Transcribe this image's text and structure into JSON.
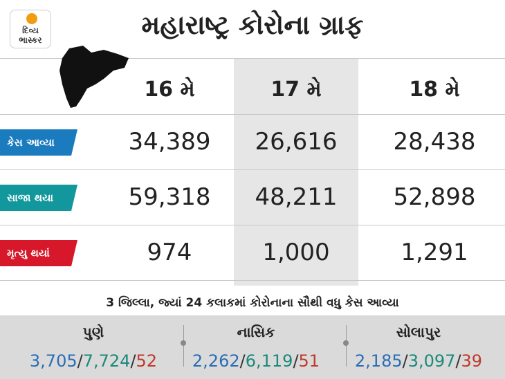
{
  "header": {
    "logo": "દિવ્ય ભાસ્કર",
    "title": "મહારાષ્ટ્ર કોરોના ગ્રાફ"
  },
  "table": {
    "columns": [
      "16 મે",
      "17 મે",
      "18 મે"
    ],
    "rows": [
      {
        "label": "કેસ આવ્યા",
        "values": [
          "34,389",
          "26,616",
          "28,438"
        ]
      },
      {
        "label": "સાજા થયા",
        "values": [
          "59,318",
          "48,211",
          "52,898"
        ]
      },
      {
        "label": "મૃત્યુ થયાં",
        "values": [
          "974",
          "1,000",
          "1,291"
        ]
      }
    ]
  },
  "subtitle": "3 જિલ્લા, જ્યાં 24 કલાકમાં કોરોનાના સૌથી વધુ કેસ આવ્યા",
  "districts": {
    "separator": "/",
    "items": [
      {
        "name": "પુણે",
        "figures": [
          "3,705",
          "7,724",
          "52"
        ]
      },
      {
        "name": "નાસિક",
        "figures": [
          "2,262",
          "6,119",
          "51"
        ]
      },
      {
        "name": "સોલાપુર",
        "figures": [
          "2,185",
          "3,097",
          "39"
        ]
      }
    ]
  }
}
